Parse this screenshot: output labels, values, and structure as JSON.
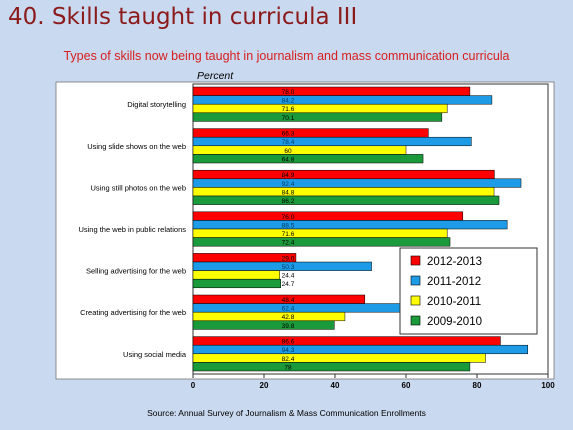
{
  "slide": {
    "title": "40. Skills taught in curricula III",
    "subtitle": "Types of skills now being taught in journalism and mass communication curricula",
    "source": "Source: Annual Survey of Journalism & Mass Communication Enrollments"
  },
  "chart_data": {
    "type": "bar",
    "orientation": "horizontal",
    "ylabel": "Percent",
    "xlim": [
      0,
      100
    ],
    "ticks": [
      0,
      20,
      40,
      60,
      80,
      100
    ],
    "grid": false,
    "legend_position": "right",
    "categories": [
      "Digital storytelling",
      "Using slide shows on the web",
      "Using still photos on the web",
      "Using the web in public relations",
      "Selling advertising for the web",
      "Creating advertising for the web",
      "Using social media"
    ],
    "series": [
      {
        "name": "2012-2013",
        "color": "#ff0000",
        "values": [
          78.0,
          66.3,
          84.9,
          76.0,
          29.0,
          48.4,
          86.6
        ]
      },
      {
        "name": "2011-2012",
        "color": "#1e9be6",
        "values": [
          84.2,
          78.4,
          92.4,
          88.5,
          50.3,
          62.4,
          94.3
        ]
      },
      {
        "name": "2010-2011",
        "color": "#ffff00",
        "values": [
          71.6,
          60,
          84.8,
          71.6,
          24.4,
          42.8,
          82.4
        ]
      },
      {
        "name": "2009-2010",
        "color": "#1a9a3a",
        "values": [
          70.1,
          64.8,
          86.2,
          72.4,
          24.7,
          39.8,
          78
        ]
      }
    ],
    "value_labels": [
      [
        "78.0",
        "84.2",
        "71.6",
        "70.1"
      ],
      [
        "66.3",
        "78.4",
        "60",
        "64.8"
      ],
      [
        "84.9",
        "92.4",
        "84.8",
        "86.2"
      ],
      [
        "76.0",
        "88.5",
        "71.6",
        "72.4"
      ],
      [
        "29.0",
        "50.3",
        "24.4",
        "24.7"
      ],
      [
        "48.4",
        "62.4",
        "42.8",
        "39.8"
      ],
      [
        "86.6",
        "94.3",
        "82.4",
        "78"
      ]
    ]
  }
}
